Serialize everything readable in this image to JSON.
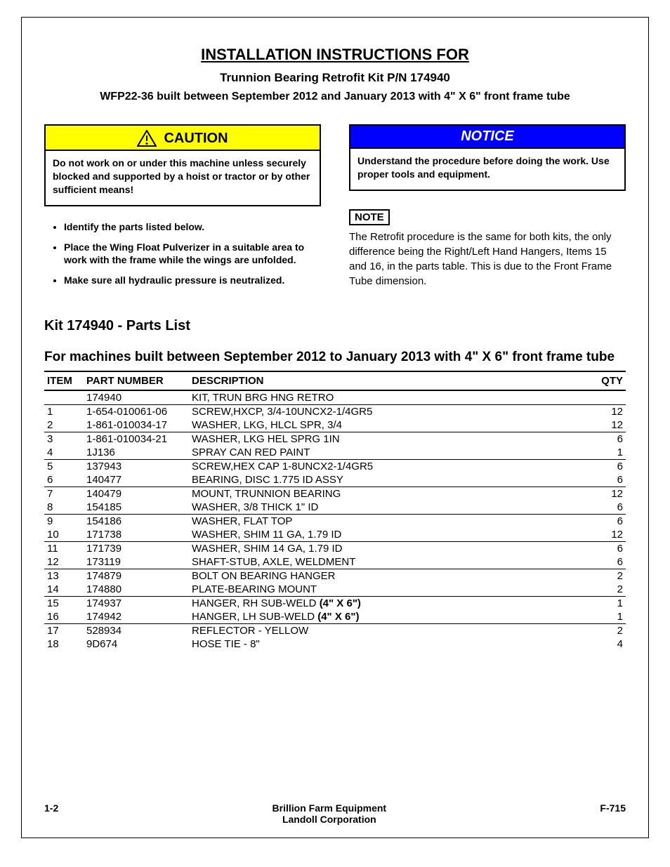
{
  "title": {
    "main": "INSTALLATION INSTRUCTIONS FOR",
    "sub": "Trunnion Bearing Retrofit Kit P/N 174940",
    "build": "WFP22-36 built between September 2012 and January 2013 with 4\" X 6\" front frame tube"
  },
  "caution": {
    "label": "CAUTION",
    "body": "Do not work on or under this machine unless securely blocked and supported by a hoist or tractor or by other sufficient means!"
  },
  "bullets": [
    "Identify the parts listed below.",
    "Place the Wing Float Pulverizer in a suitable area to work with the frame while the wings are unfolded.",
    "Make sure all hydraulic pressure is neutralized."
  ],
  "notice": {
    "label": "NOTICE",
    "body": "Understand the procedure before doing the work. Use proper tools and equipment."
  },
  "note": {
    "label": "NOTE",
    "body": "The Retrofit procedure is the same for both kits, the only difference being the Right/Left Hand Hangers, Items 15 and 16, in the parts table. This is due to the Front Frame Tube dimension."
  },
  "parts_heading": "Kit 174940 - Parts List",
  "table_heading": "For machines built between September 2012 to January 2013 with 4\" X 6\" front frame tube",
  "table": {
    "columns": [
      "ITEM",
      "PART NUMBER",
      "DESCRIPTION",
      "QTY"
    ],
    "kit_row": {
      "part": "174940",
      "desc": "KIT, TRUN BRG HNG RETRO"
    },
    "rows": [
      {
        "item": "1",
        "part": "1-654-010061-06",
        "desc": "SCREW,HXCP, 3/4-10UNCX2-1/4GR5",
        "qty": "12",
        "sep": true
      },
      {
        "item": "2",
        "part": "1-861-010034-17",
        "desc": "WASHER, LKG, HLCL SPR, 3/4",
        "qty": "12",
        "sep": false
      },
      {
        "item": "3",
        "part": "1-861-010034-21",
        "desc": "WASHER, LKG HEL SPRG 1IN",
        "qty": "6",
        "sep": true
      },
      {
        "item": "4",
        "part": "1J136",
        "desc": "SPRAY CAN RED PAINT",
        "qty": "1",
        "sep": false
      },
      {
        "item": "5",
        "part": "137943",
        "desc": "SCREW,HEX CAP 1-8UNCX2-1/4GR5",
        "qty": "6",
        "sep": true
      },
      {
        "item": "6",
        "part": "140477",
        "desc": "BEARING, DISC 1.775 ID ASSY",
        "qty": "6",
        "sep": false
      },
      {
        "item": "7",
        "part": "140479",
        "desc": "MOUNT, TRUNNION BEARING",
        "qty": "12",
        "sep": true
      },
      {
        "item": "8",
        "part": "154185",
        "desc": "WASHER, 3/8 THICK 1\" ID",
        "qty": "6",
        "sep": false
      },
      {
        "item": "9",
        "part": "154186",
        "desc": "WASHER, FLAT TOP",
        "qty": "6",
        "sep": true
      },
      {
        "item": "10",
        "part": "171738",
        "desc": "WASHER, SHIM 11 GA, 1.79 ID",
        "qty": "12",
        "sep": false
      },
      {
        "item": "11",
        "part": "171739",
        "desc": "WASHER, SHIM 14 GA, 1.79 ID",
        "qty": "6",
        "sep": true
      },
      {
        "item": "12",
        "part": "173119",
        "desc": "SHAFT-STUB, AXLE, WELDMENT",
        "qty": "6",
        "sep": false
      },
      {
        "item": "13",
        "part": "174879",
        "desc": "BOLT ON BEARING HANGER",
        "qty": "2",
        "sep": true
      },
      {
        "item": "14",
        "part": "174880",
        "desc": "PLATE-BEARING MOUNT",
        "qty": "2",
        "sep": false
      },
      {
        "item": "15",
        "part": "174937",
        "desc": "HANGER, RH SUB-WELD <b>(4\" X 6\")</b>",
        "qty": "1",
        "sep": true
      },
      {
        "item": "16",
        "part": "174942",
        "desc": "HANGER, LH SUB-WELD <b>(4\" X 6\")</b>",
        "qty": "1",
        "sep": false
      },
      {
        "item": "17",
        "part": "528934",
        "desc": "REFLECTOR - YELLOW",
        "qty": "2",
        "sep": true
      },
      {
        "item": "18",
        "part": "9D674",
        "desc": "HOSE TIE - 8\"",
        "qty": "4",
        "sep": false
      }
    ]
  },
  "footer": {
    "left": "1-2",
    "center1": "Brillion Farm Equipment",
    "center2": "Landoll Corporation",
    "right": "F-715"
  },
  "colors": {
    "caution_bg": "#ffff00",
    "notice_bg": "#0000ff",
    "notice_fg": "#ffffff"
  }
}
